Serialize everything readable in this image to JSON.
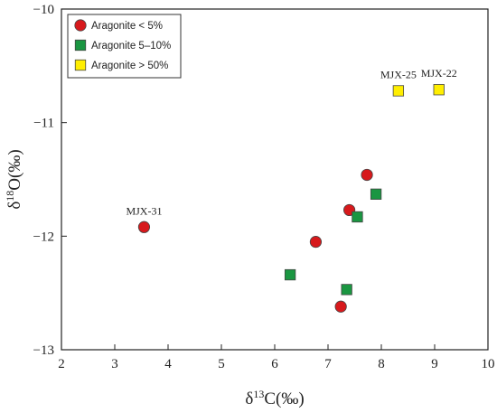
{
  "chart_data": {
    "type": "scatter",
    "title": "",
    "xlabel": "δ13C(‰)",
    "xlabel_parts": {
      "prefix": "δ",
      "sup": "13",
      "suffix": "C(‰)"
    },
    "ylabel": "δ18O(‰)",
    "ylabel_parts": {
      "prefix": "δ",
      "sup": "18",
      "suffix": "O(‰)"
    },
    "xlim": [
      2,
      10
    ],
    "ylim": [
      -13,
      -10
    ],
    "xticks": [
      "2",
      "3",
      "4",
      "5",
      "6",
      "7",
      "8",
      "9",
      "10"
    ],
    "yticks": [
      "-10",
      "-11",
      "-12",
      "-13"
    ],
    "grid": false,
    "legend_position": "top-left",
    "series": [
      {
        "name": "Aragonite < 5%",
        "marker": "circle",
        "color": "#d7191c",
        "points": [
          {
            "x": 3.55,
            "y": -11.92
          },
          {
            "x": 6.77,
            "y": -12.05
          },
          {
            "x": 7.4,
            "y": -11.77
          },
          {
            "x": 7.73,
            "y": -11.46
          },
          {
            "x": 7.24,
            "y": -12.62
          }
        ]
      },
      {
        "name": "Aragonite 5–10%",
        "marker": "square",
        "color": "#1a9641",
        "points": [
          {
            "x": 6.29,
            "y": -12.34
          },
          {
            "x": 7.35,
            "y": -12.47
          },
          {
            "x": 7.55,
            "y": -11.83
          },
          {
            "x": 7.9,
            "y": -11.63
          }
        ]
      },
      {
        "name": "Aragonite > 50%",
        "marker": "square",
        "color": "#ffee00",
        "points": [
          {
            "x": 8.32,
            "y": -10.72
          },
          {
            "x": 9.08,
            "y": -10.71
          }
        ]
      }
    ],
    "annotations": [
      {
        "text": "MJX-31",
        "x": 3.55,
        "y": -11.92
      },
      {
        "text": "MJX-25",
        "x": 8.32,
        "y": -10.72
      },
      {
        "text": "MJX-22",
        "x": 9.08,
        "y": -10.71
      }
    ]
  }
}
